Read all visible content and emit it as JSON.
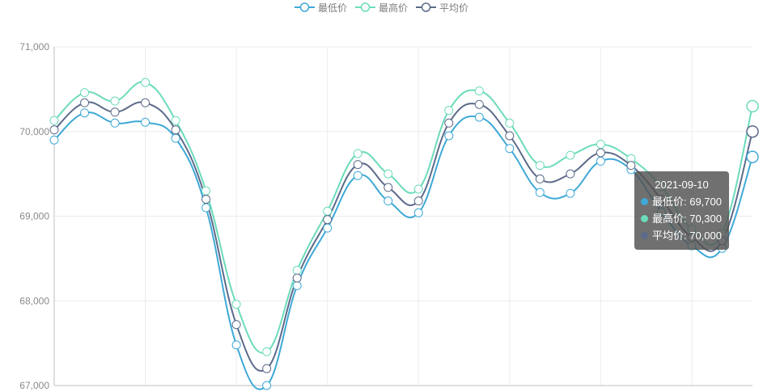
{
  "legend": {
    "items": [
      {
        "name": "最低价",
        "color": "#3fa9d6"
      },
      {
        "name": "最高价",
        "color": "#6cdbbb"
      },
      {
        "name": "平均价",
        "color": "#5d6a8a"
      }
    ]
  },
  "tooltip": {
    "date": "2021-09-10",
    "rows": [
      {
        "label": "最低价: 69,700",
        "color": "#3fa9d6"
      },
      {
        "label": "最高价: 70,300",
        "color": "#6cdbbb"
      },
      {
        "label": "平均价: 70,000",
        "color": "#5d6a8a"
      }
    ]
  },
  "chart_data": {
    "type": "line",
    "smooth": true,
    "ylim": [
      67000,
      71000
    ],
    "yticks": [
      67000,
      68000,
      69000,
      70000,
      71000
    ],
    "ytick_labels": [
      "67,000",
      "68,000",
      "69,000",
      "70,000",
      "71,000"
    ],
    "grid": true,
    "legend_position": "top-center",
    "highlight_index": 23,
    "series": [
      {
        "name": "最低价",
        "color": "#3fa9d6",
        "values": [
          69900,
          70220,
          70100,
          70110,
          69920,
          69100,
          67480,
          67000,
          68180,
          68860,
          69480,
          69180,
          69040,
          69950,
          70170,
          69800,
          69280,
          69270,
          69650,
          69550,
          69050,
          68650,
          68620,
          69700
        ]
      },
      {
        "name": "最高价",
        "color": "#6cdbbb",
        "values": [
          70130,
          70460,
          70360,
          70580,
          70130,
          69300,
          67960,
          67400,
          68360,
          69060,
          69740,
          69500,
          69320,
          70250,
          70480,
          70100,
          69600,
          69720,
          69850,
          69680,
          69350,
          68850,
          68800,
          70300
        ]
      },
      {
        "name": "平均价",
        "color": "#5d6a8a",
        "values": [
          70020,
          70340,
          70230,
          70340,
          70020,
          69200,
          67720,
          67200,
          68270,
          68960,
          69610,
          69340,
          69180,
          70100,
          70320,
          69950,
          69440,
          69500,
          69750,
          69600,
          69200,
          68750,
          68710,
          70000
        ]
      }
    ]
  }
}
